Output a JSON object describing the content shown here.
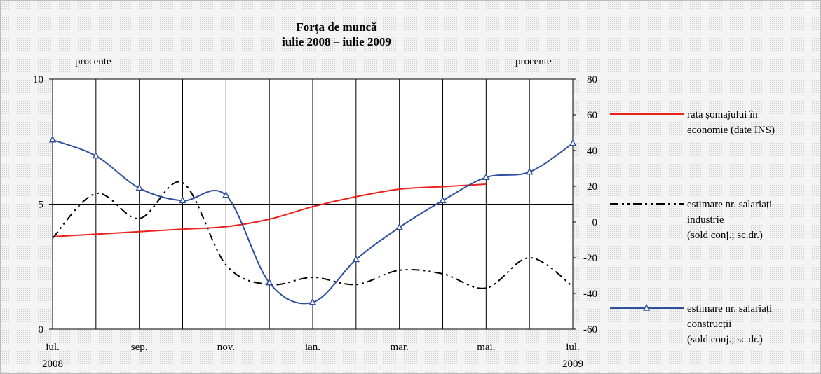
{
  "chart_data": {
    "type": "line",
    "title": "Forța de muncă\niulie 2008 – iulie 2009",
    "y_label": "procente",
    "y2_label": "procente",
    "categories": [
      "iul.\n2008",
      null,
      "sep.",
      null,
      "nov.",
      null,
      "ian.",
      null,
      "mar.",
      null,
      "mai.",
      null,
      "iul.\n2009"
    ],
    "ylim": [
      0,
      10
    ],
    "yticks": [
      0,
      5,
      10
    ],
    "y2lim": [
      -60,
      80
    ],
    "y2ticks": [
      -60,
      -40,
      -20,
      0,
      20,
      40,
      60,
      80
    ],
    "grid": true,
    "legend": "right",
    "series": [
      {
        "name": "rata șomajului în\neconomie (date INS)",
        "color": "#e8211d",
        "style": "solid",
        "values": [
          3.7,
          3.8,
          3.9,
          4.0,
          4.1,
          4.4,
          4.9,
          5.3,
          5.6,
          5.7,
          5.8,
          null,
          null
        ]
      },
      {
        "name": "estimare nr. salariați\nindustrie\n(sold conj.; sc.dr.)",
        "color": "#000000",
        "style": "dashdot",
        "axis": "y2",
        "values": [
          -9,
          16,
          2,
          22,
          -24,
          -35,
          -31,
          -35,
          -27,
          -29,
          -37,
          -20,
          -36
        ]
      },
      {
        "name": "estimare nr. salariați\nconstrucții\n(sold conj.; sc.dr.)",
        "color": "#2f4f9f",
        "style": "solid",
        "marker": "triangle",
        "axis": "y2",
        "values": [
          46,
          37,
          19,
          12,
          15,
          -34,
          -45,
          -21,
          -3,
          12,
          25,
          28,
          44
        ]
      }
    ]
  }
}
